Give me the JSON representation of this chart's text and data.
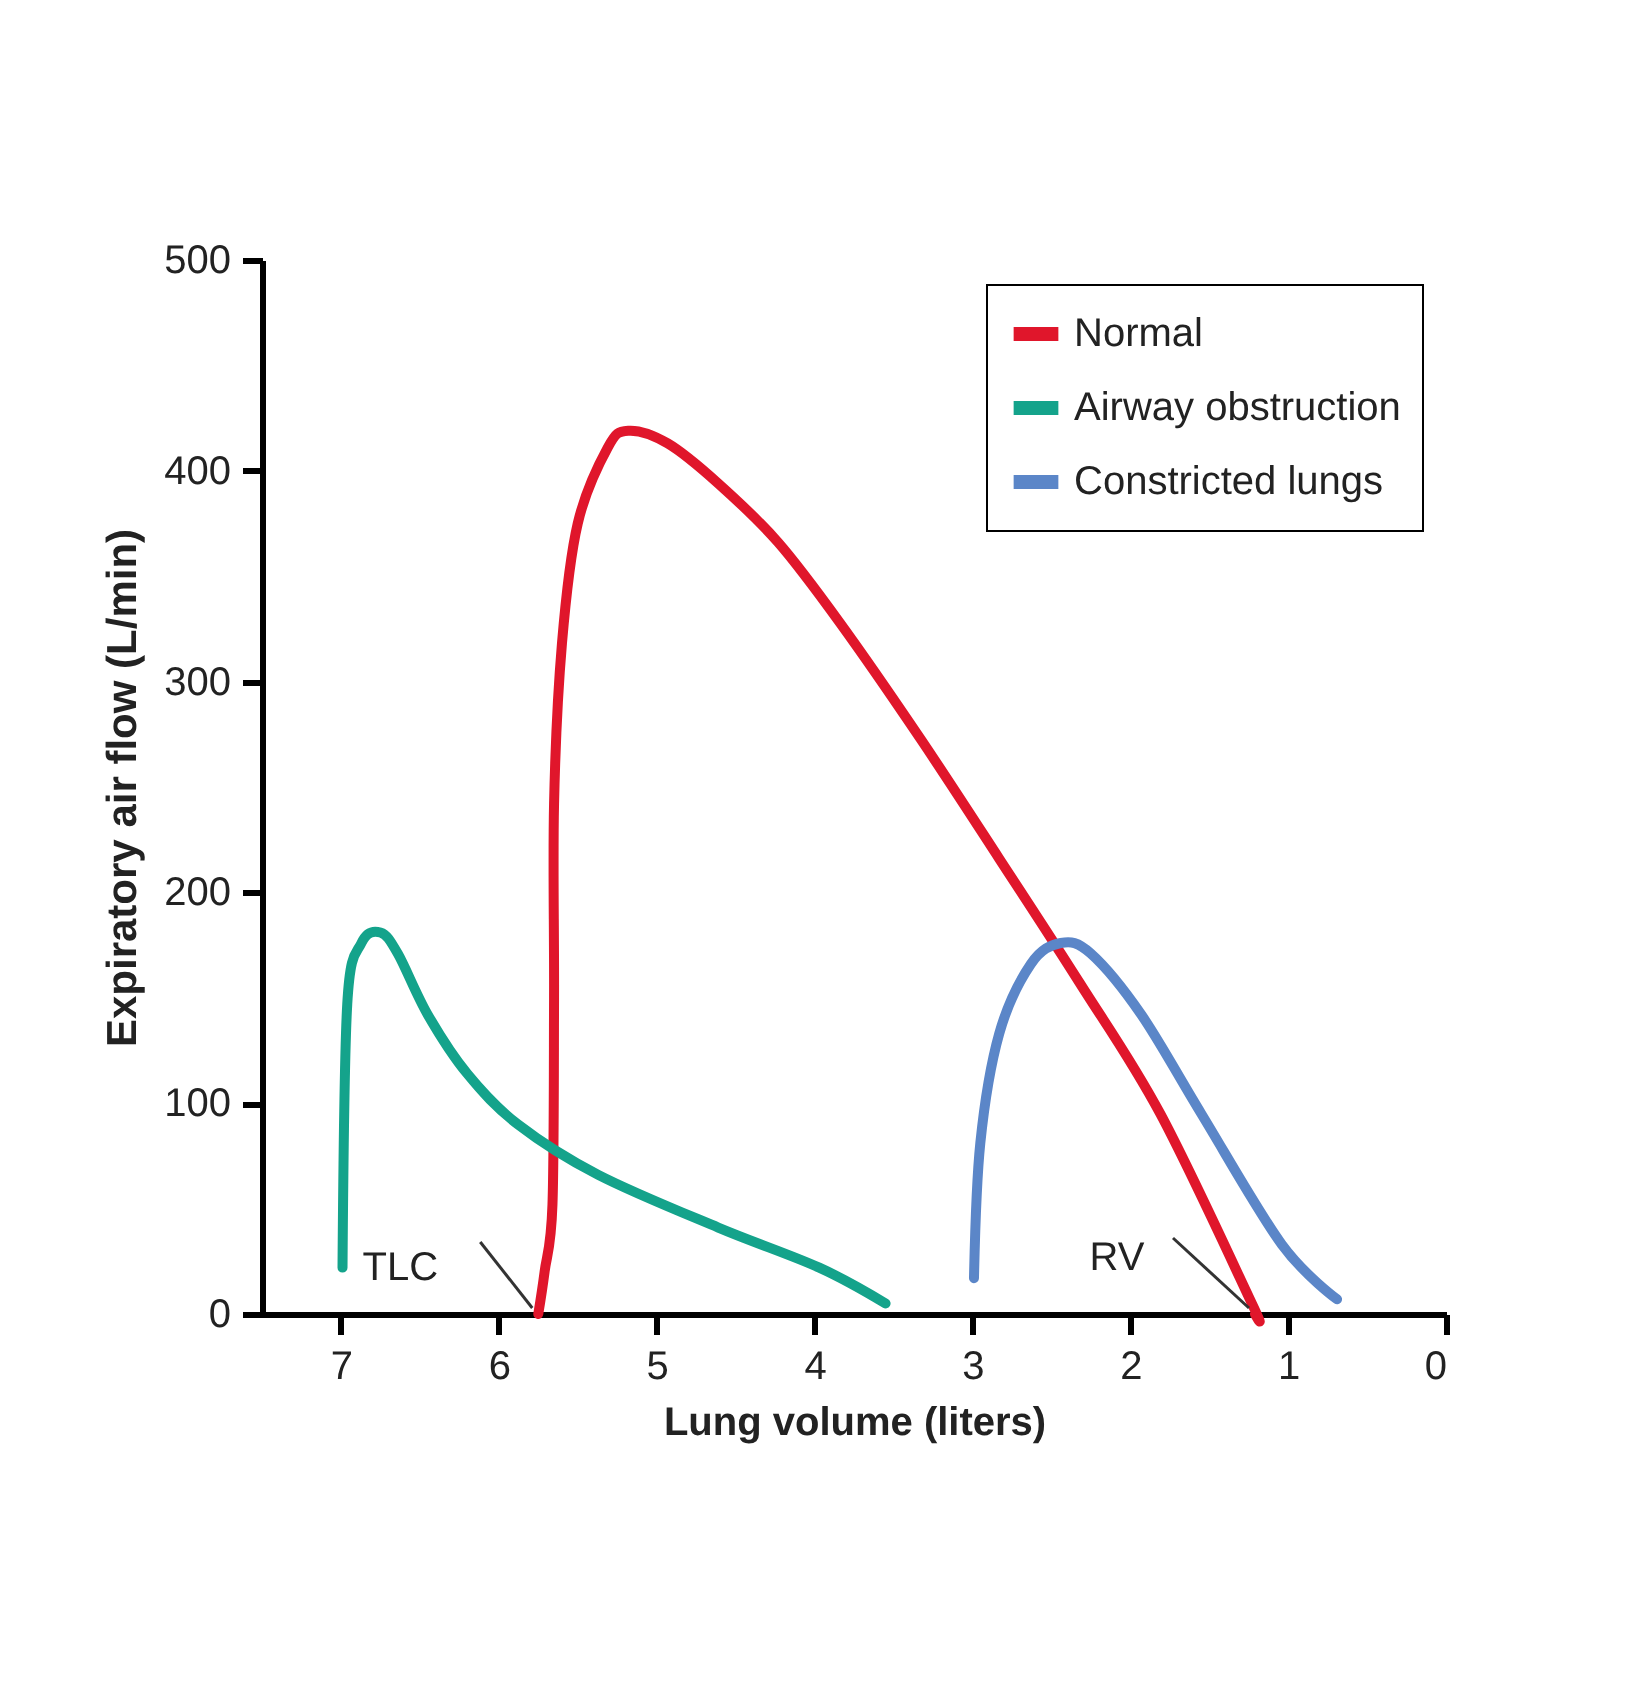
{
  "chart_data": {
    "type": "line",
    "xlabel": "Lung volume (liters)",
    "ylabel": "Expiratory air flow (L/min)",
    "xlim": [
      7.5,
      0
    ],
    "xticks": [
      7,
      6,
      5,
      4,
      3,
      2,
      1,
      0
    ],
    "ylim": [
      0,
      500
    ],
    "yticks": [
      0,
      100,
      200,
      300,
      400,
      500
    ],
    "grid": false,
    "legend": "top right",
    "marker": "none",
    "line_style": "solid",
    "series": [
      {
        "name": "Normal",
        "color": "#e0162b",
        "x": [
          5.75,
          5.71,
          5.66,
          5.65,
          5.65,
          5.6,
          5.5,
          5.31,
          5.18,
          4.93,
          4.61,
          4.23,
          3.84,
          3.33,
          2.83,
          2.32,
          1.81,
          1.23,
          1.21
        ],
        "values": [
          0,
          20,
          52,
          150,
          242,
          318,
          375,
          411,
          419,
          413,
          394,
          366,
          328,
          273,
          216,
          157,
          95,
          5,
          0
        ]
      },
      {
        "name": "Airway obstruction",
        "color": "#14a38b",
        "x": [
          6.99,
          6.96,
          6.87,
          6.75,
          6.64,
          6.45,
          6.2,
          5.88,
          5.37,
          4.61,
          3.97,
          3.55
        ],
        "values": [
          22,
          147,
          176,
          181,
          171,
          142,
          114,
          90,
          66,
          41,
          22,
          5
        ]
      },
      {
        "name": "Constricted lungs",
        "color": "#5b86c8",
        "x": [
          2.99,
          2.95,
          2.83,
          2.63,
          2.44,
          2.25,
          1.93,
          1.55,
          1.04,
          0.69
        ],
        "values": [
          17,
          81,
          133,
          166,
          176,
          171,
          142,
          95,
          33,
          7
        ]
      }
    ],
    "annotations": [
      {
        "text": "TLC",
        "x": 5.75,
        "y": 0
      },
      {
        "text": "RV",
        "x": 1.21,
        "y": 0
      }
    ]
  }
}
